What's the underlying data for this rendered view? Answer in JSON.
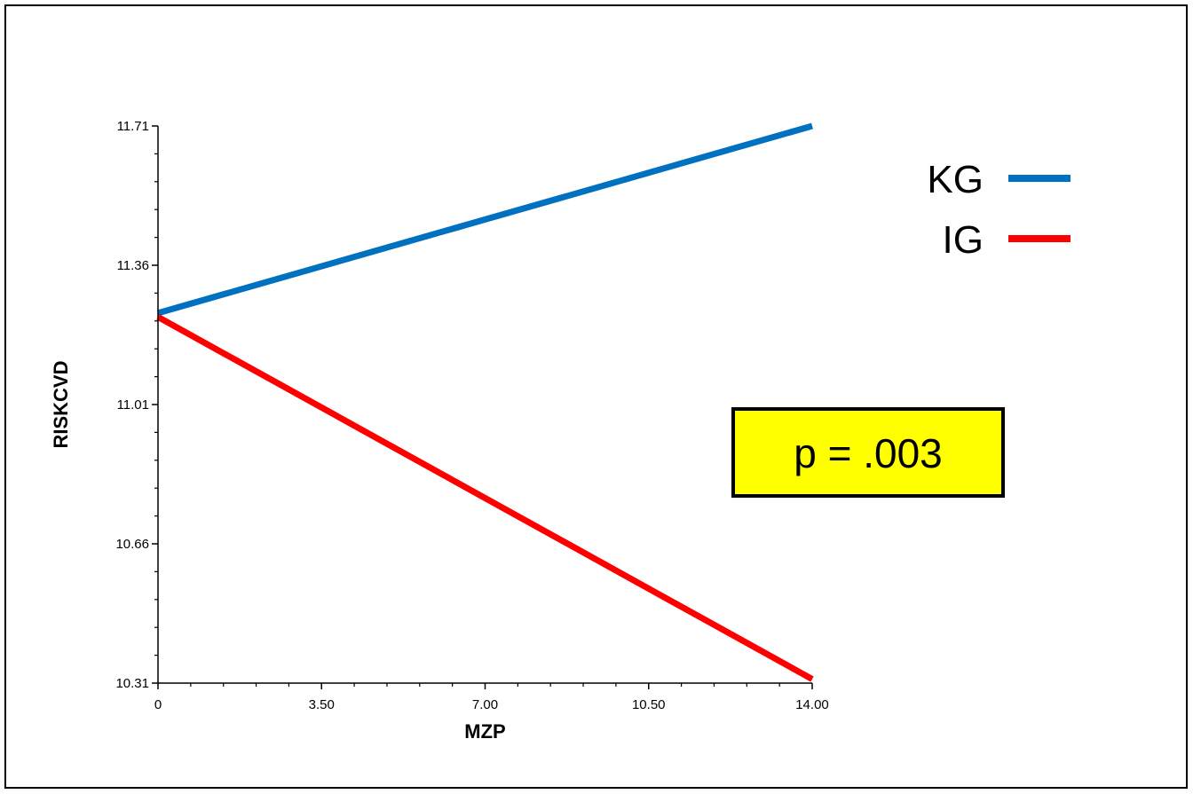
{
  "chart_data": {
    "type": "line",
    "xlabel": "MZP",
    "ylabel": "RISKCVD",
    "xlim": [
      0,
      14
    ],
    "ylim": [
      10.31,
      11.71
    ],
    "x_ticks": [
      "0",
      "3.50",
      "7.00",
      "10.50",
      "14.00"
    ],
    "y_ticks": [
      "10.31",
      "10.66",
      "11.01",
      "11.36",
      "11.71"
    ],
    "series": [
      {
        "name": "KG",
        "color": "#0070c0",
        "x": [
          0,
          14
        ],
        "y": [
          11.24,
          11.71
        ]
      },
      {
        "name": "IG",
        "color": "#ff0000",
        "x": [
          0,
          14
        ],
        "y": [
          11.23,
          10.32
        ]
      }
    ],
    "annotation": {
      "text": "p = .003",
      "background": "#ffff00"
    },
    "legend_position": "top-right",
    "grid": false
  }
}
